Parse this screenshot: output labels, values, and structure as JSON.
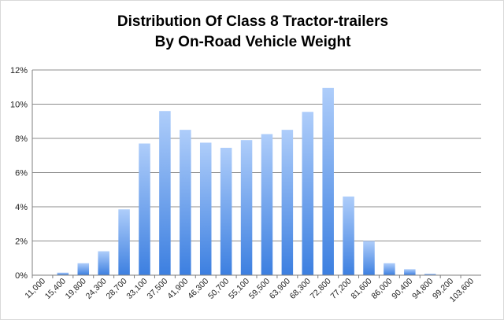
{
  "chart_data": {
    "type": "bar",
    "title": "Distribution Of Class 8 Tractor-trailers",
    "subtitle": "By On-Road Vehicle Weight",
    "xlabel": "",
    "ylabel": "",
    "ylim": [
      0,
      12
    ],
    "yticks": [
      "0%",
      "2%",
      "4%",
      "6%",
      "8%",
      "10%",
      "12%"
    ],
    "grid": true,
    "categories": [
      "11,000",
      "15,400",
      "19,800",
      "24,300",
      "28,700",
      "33,100",
      "37,500",
      "41,900",
      "46,300",
      "50,700",
      "55,100",
      "59,500",
      "63,900",
      "68,300",
      "72,800",
      "77,200",
      "81,600",
      "86,000",
      "90,400",
      "94,800",
      "99,200",
      "103,600"
    ],
    "values": [
      0,
      0.15,
      0.7,
      1.4,
      3.85,
      7.7,
      9.6,
      8.5,
      7.75,
      7.45,
      7.9,
      8.25,
      8.5,
      9.55,
      10.95,
      4.6,
      2.0,
      0.7,
      0.35,
      0.08,
      0,
      0
    ],
    "colors": {
      "bar_top": "#aecdfa",
      "bar_bottom": "#3c7fe0",
      "grid": "#8c8c8c",
      "axis": "#7f7f7f"
    }
  }
}
